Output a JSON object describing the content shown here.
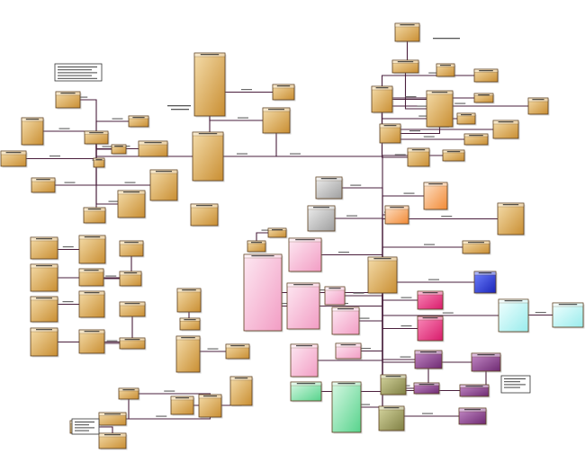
{
  "title": "",
  "colors": {
    "tan": "#d7a24a",
    "tan_light": "#f6e3b9",
    "line": "#4a1f3c",
    "gray": "#bfbfbf",
    "pink": "#f7a6c9",
    "hotpink": "#e8307f",
    "green": "#7fe6a6",
    "olive": "#9a9a5a",
    "purple": "#8a3f8e",
    "blue": "#2b3ed6",
    "cyan": "#b7f4f4",
    "orange": "#f7a25f"
  },
  "nodes": [
    {
      "id": "n1",
      "theme": "tan"
    },
    {
      "id": "n2",
      "theme": "tan"
    },
    {
      "id": "n3",
      "theme": "tan"
    },
    {
      "id": "n4",
      "theme": "tan"
    },
    {
      "id": "n5",
      "theme": "tan"
    },
    {
      "id": "n6",
      "theme": "tan"
    },
    {
      "id": "n7",
      "theme": "tan"
    },
    {
      "id": "n8",
      "theme": "tan"
    },
    {
      "id": "n9",
      "theme": "tan"
    },
    {
      "id": "n10",
      "theme": "tan"
    },
    {
      "id": "n11",
      "theme": "tan"
    },
    {
      "id": "n12",
      "theme": "tan"
    },
    {
      "id": "n13",
      "theme": "tan"
    },
    {
      "id": "n14",
      "theme": "tan"
    },
    {
      "id": "n15",
      "theme": "tan"
    },
    {
      "id": "n16",
      "theme": "tan"
    },
    {
      "id": "n17",
      "theme": "tan"
    },
    {
      "id": "n18",
      "theme": "tan"
    },
    {
      "id": "n19",
      "theme": "tan"
    },
    {
      "id": "n20",
      "theme": "tan"
    },
    {
      "id": "n21",
      "theme": "tan"
    },
    {
      "id": "n22",
      "theme": "tan"
    },
    {
      "id": "n23",
      "theme": "tan"
    },
    {
      "id": "n24",
      "theme": "tan"
    },
    {
      "id": "n25",
      "theme": "tan"
    },
    {
      "id": "n26",
      "theme": "tan"
    },
    {
      "id": "n27",
      "theme": "tan"
    },
    {
      "id": "n28",
      "theme": "tan"
    },
    {
      "id": "n29",
      "theme": "tan"
    },
    {
      "id": "n30",
      "theme": "tan"
    },
    {
      "id": "n31",
      "theme": "tan"
    },
    {
      "id": "n32",
      "theme": "tan"
    },
    {
      "id": "n33",
      "theme": "tan"
    },
    {
      "id": "n34",
      "theme": "tan"
    },
    {
      "id": "n35",
      "theme": "tan"
    },
    {
      "id": "n36",
      "theme": "tan"
    },
    {
      "id": "n37",
      "theme": "tan"
    },
    {
      "id": "n38",
      "theme": "tan"
    },
    {
      "id": "n39",
      "theme": "tan"
    },
    {
      "id": "n40",
      "theme": "tan"
    },
    {
      "id": "n41",
      "theme": "tan"
    },
    {
      "id": "n42",
      "theme": "tan"
    },
    {
      "id": "n43",
      "theme": "tan"
    },
    {
      "id": "n44",
      "theme": "tan"
    },
    {
      "id": "n45",
      "theme": "tan"
    },
    {
      "id": "n46",
      "theme": "tan"
    },
    {
      "id": "n47",
      "theme": "tan"
    },
    {
      "id": "n48",
      "theme": "tan"
    },
    {
      "id": "n49",
      "theme": "tan"
    },
    {
      "id": "n50",
      "theme": "tan"
    },
    {
      "id": "n51",
      "theme": "tan"
    },
    {
      "id": "n52",
      "theme": "tan"
    },
    {
      "id": "n53",
      "theme": "tan"
    },
    {
      "id": "n54",
      "theme": "tan"
    },
    {
      "id": "n55",
      "theme": "tan"
    },
    {
      "id": "n56",
      "theme": "tan"
    },
    {
      "id": "n57",
      "theme": "tan"
    },
    {
      "id": "n58",
      "theme": "tan"
    },
    {
      "id": "n59",
      "theme": "tan"
    },
    {
      "id": "n60",
      "theme": "gray"
    },
    {
      "id": "n61",
      "theme": "gray"
    },
    {
      "id": "n62",
      "theme": "orange"
    },
    {
      "id": "n63",
      "theme": "orange"
    },
    {
      "id": "n64",
      "theme": "pink"
    },
    {
      "id": "n65",
      "theme": "pink"
    },
    {
      "id": "n66",
      "theme": "pink"
    },
    {
      "id": "n67",
      "theme": "pink"
    },
    {
      "id": "n68",
      "theme": "pink"
    },
    {
      "id": "n69",
      "theme": "pink"
    },
    {
      "id": "n70",
      "theme": "pink"
    },
    {
      "id": "n71",
      "theme": "hotpink"
    },
    {
      "id": "n72",
      "theme": "hotpink"
    },
    {
      "id": "n73",
      "theme": "blue"
    },
    {
      "id": "n74",
      "theme": "cyan"
    },
    {
      "id": "n75",
      "theme": "cyan"
    },
    {
      "id": "n76",
      "theme": "green"
    },
    {
      "id": "n77",
      "theme": "green"
    },
    {
      "id": "n78",
      "theme": "olive"
    },
    {
      "id": "n79",
      "theme": "olive"
    },
    {
      "id": "n80",
      "theme": "purple"
    },
    {
      "id": "n81",
      "theme": "purple"
    },
    {
      "id": "n82",
      "theme": "purple"
    },
    {
      "id": "n83",
      "theme": "purple"
    },
    {
      "id": "n84",
      "theme": "purple"
    }
  ],
  "edges": [
    [
      "n7",
      "n8"
    ],
    [
      "n7",
      "n9"
    ],
    [
      "n7",
      "n10"
    ],
    [
      "n7",
      "n11"
    ],
    [
      "n7",
      "n12"
    ],
    [
      "n7",
      "n13"
    ],
    [
      "n7",
      "n14"
    ],
    [
      "n7",
      "n15"
    ],
    [
      "n7",
      "n16"
    ],
    [
      "n7",
      "n17"
    ],
    [
      "n7",
      "n18"
    ],
    [
      "n19",
      "n20"
    ],
    [
      "n19",
      "n22"
    ],
    [
      "n20",
      "n21"
    ],
    [
      "n19",
      "n21"
    ],
    [
      "n24",
      "n25"
    ],
    [
      "n26",
      "n27"
    ],
    [
      "n28",
      "n29"
    ],
    [
      "n30",
      "n31"
    ],
    [
      "n32",
      "n33"
    ],
    [
      "n34",
      "n35"
    ],
    [
      "n36",
      "n37"
    ],
    [
      "n38",
      "n39"
    ],
    [
      "n40",
      "n41"
    ],
    [
      "n42",
      "n43"
    ],
    [
      "n42",
      "n44"
    ],
    [
      "n43",
      "n44"
    ],
    [
      "n45",
      "n46"
    ],
    [
      "n47",
      "n48"
    ],
    [
      "n1",
      "n2"
    ],
    [
      "n2",
      "n3"
    ],
    [
      "n3",
      "n4"
    ],
    [
      "n3",
      "n5"
    ],
    [
      "n4",
      "n49"
    ],
    [
      "n4",
      "n50"
    ],
    [
      "n4",
      "n51"
    ],
    [
      "n4",
      "n52"
    ],
    [
      "n4",
      "n53"
    ],
    [
      "n4",
      "n54"
    ],
    [
      "n4",
      "n55"
    ],
    [
      "n4",
      "n56"
    ],
    [
      "n57",
      "n21"
    ],
    [
      "n57",
      "n58"
    ],
    [
      "n57",
      "n59"
    ],
    [
      "n57",
      "n60"
    ],
    [
      "n57",
      "n61"
    ],
    [
      "n57",
      "n62"
    ],
    [
      "n57",
      "n63"
    ],
    [
      "n57",
      "n64"
    ],
    [
      "n57",
      "n65"
    ],
    [
      "n57",
      "n66"
    ],
    [
      "n57",
      "n67"
    ],
    [
      "n57",
      "n68"
    ],
    [
      "n57",
      "n69"
    ],
    [
      "n57",
      "n70"
    ],
    [
      "n57",
      "n71"
    ],
    [
      "n57",
      "n72"
    ],
    [
      "n57",
      "n73"
    ],
    [
      "n57",
      "n74"
    ],
    [
      "n57",
      "n76"
    ],
    [
      "n57",
      "n77"
    ],
    [
      "n57",
      "n78"
    ],
    [
      "n57",
      "n79"
    ],
    [
      "n57",
      "n80"
    ],
    [
      "n57",
      "n81"
    ],
    [
      "n57",
      "n82"
    ],
    [
      "n57",
      "n83"
    ],
    [
      "n57",
      "n84"
    ],
    [
      "n74",
      "n75"
    ],
    [
      "n80",
      "n81"
    ],
    [
      "n82",
      "n83"
    ],
    [
      "n7",
      "n21"
    ],
    [
      "n64",
      "n66"
    ]
  ]
}
